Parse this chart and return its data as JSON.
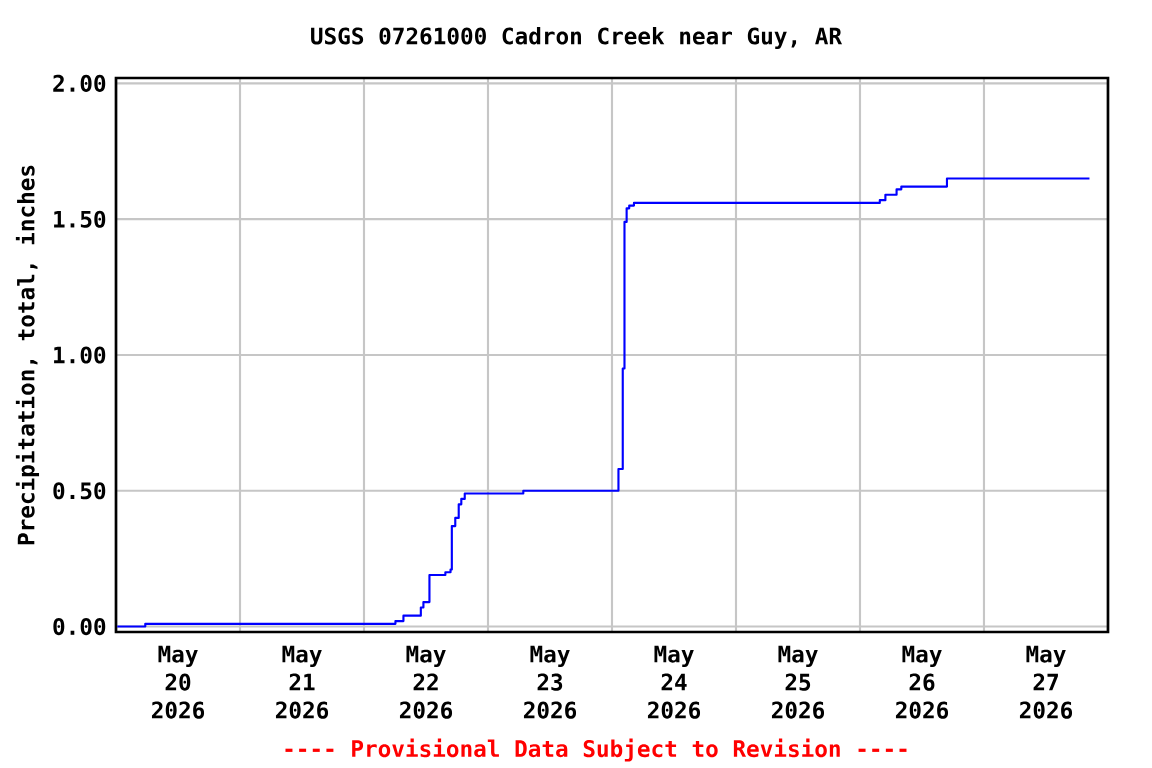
{
  "chart_data": {
    "type": "step",
    "title": "USGS 07261000 Cadron Creek near Guy, AR",
    "ylabel": "Precipitation, total, inches",
    "annotations": [
      "---- Provisional Data Subject to Revision ----"
    ],
    "x": [
      "2026-05-20T00:15",
      "2026-05-20T05:40",
      "2026-05-22T06:05",
      "2026-05-22T07:38",
      "2026-05-22T11:00",
      "2026-05-22T11:30",
      "2026-05-22T12:40",
      "2026-05-22T15:45",
      "2026-05-22T16:45",
      "2026-05-22T17:00",
      "2026-05-22T17:40",
      "2026-05-22T18:20",
      "2026-05-22T18:50",
      "2026-05-22T19:30",
      "2026-05-23T06:50",
      "2026-05-24T01:15",
      "2026-05-24T02:05",
      "2026-05-24T02:25",
      "2026-05-24T02:50",
      "2026-05-24T03:20",
      "2026-05-24T04:15",
      "2026-05-26T03:50",
      "2026-05-26T04:55",
      "2026-05-26T07:05",
      "2026-05-26T08:00",
      "2026-05-26T16:50",
      "2026-05-27T20:25"
    ],
    "series": [
      {
        "color": "#0000ff",
        "values": [
          0,
          0.01,
          0.02,
          0.04,
          0.07,
          0.09,
          0.19,
          0.2,
          0.21,
          0.37,
          0.4,
          0.45,
          0.47,
          0.49,
          0.5,
          0.58,
          0.95,
          1.49,
          1.54,
          1.55,
          1.56,
          1.57,
          1.59,
          1.61,
          1.62,
          1.65,
          1.65
        ]
      }
    ],
    "xlim": [
      "2026-05-20T00:00",
      "2026-05-28T00:00"
    ],
    "xticks": [
      {
        "value": "2026-05-20T00:00",
        "label": null
      },
      {
        "value": "2026-05-20T12:00",
        "label": "May 20 2026"
      },
      {
        "value": "2026-05-21T00:00",
        "label": null
      },
      {
        "value": "2026-05-21T12:00",
        "label": "May 21 2026"
      },
      {
        "value": "2026-05-22T00:00",
        "label": null
      },
      {
        "value": "2026-05-22T12:00",
        "label": "May 22 2026"
      },
      {
        "value": "2026-05-23T00:00",
        "label": null
      },
      {
        "value": "2026-05-23T12:00",
        "label": "May 23 2026"
      },
      {
        "value": "2026-05-24T00:00",
        "label": null
      },
      {
        "value": "2026-05-24T12:00",
        "label": "May 24 2026"
      },
      {
        "value": "2026-05-25T00:00",
        "label": null
      },
      {
        "value": "2026-05-25T12:00",
        "label": "May 25 2026"
      },
      {
        "value": "2026-05-26T00:00",
        "label": null
      },
      {
        "value": "2026-05-26T12:00",
        "label": "May 26 2026"
      },
      {
        "value": "2026-05-27T00:00",
        "label": null
      },
      {
        "value": "2026-05-27T12:00",
        "label": "May 27 2026"
      },
      {
        "value": "2026-05-28T00:00",
        "label": null
      }
    ],
    "ylim": [
      -0.02,
      2.02
    ],
    "yticks": [
      {
        "value": 0,
        "label": "0.00"
      },
      {
        "value": 0.5,
        "label": "0.50"
      },
      {
        "value": 1,
        "label": "1.00"
      },
      {
        "value": 1.5,
        "label": "1.50"
      },
      {
        "value": 2,
        "label": "2.00"
      }
    ],
    "grid": true
  }
}
